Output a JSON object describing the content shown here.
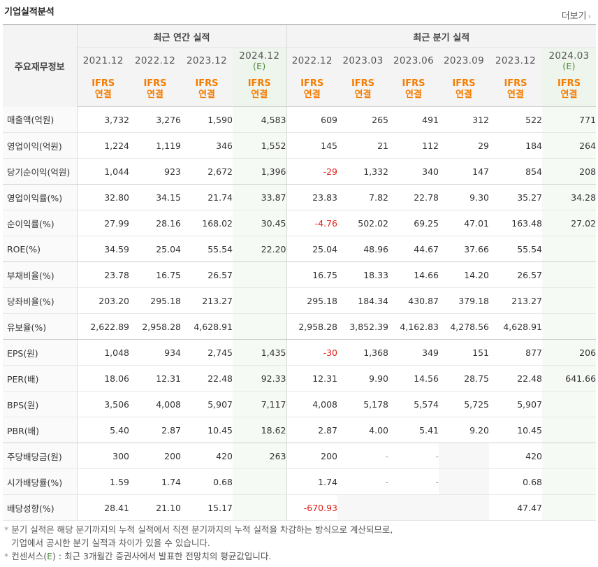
{
  "title": "기업실적분석",
  "more_label": "더보기",
  "more_chevron": "›",
  "header": {
    "label_head": "주요재무정보",
    "annual_group": "최근 연간 실적",
    "quarter_group": "최근 분기 실적",
    "periods": [
      {
        "year": "2021.12",
        "est": "",
        "basis1": "IFRS",
        "basis2": "연결"
      },
      {
        "year": "2022.12",
        "est": "",
        "basis1": "IFRS",
        "basis2": "연결"
      },
      {
        "year": "2023.12",
        "est": "",
        "basis1": "IFRS",
        "basis2": "연결"
      },
      {
        "year": "2024.12",
        "est": "(E)",
        "basis1": "IFRS",
        "basis2": "연결"
      },
      {
        "year": "2022.12",
        "est": "",
        "basis1": "IFRS",
        "basis2": "연결"
      },
      {
        "year": "2023.03",
        "est": "",
        "basis1": "IFRS",
        "basis2": "연결"
      },
      {
        "year": "2023.06",
        "est": "",
        "basis1": "IFRS",
        "basis2": "연결"
      },
      {
        "year": "2023.09",
        "est": "",
        "basis1": "IFRS",
        "basis2": "연결"
      },
      {
        "year": "2023.12",
        "est": "",
        "basis1": "IFRS",
        "basis2": "연결"
      },
      {
        "year": "2024.03",
        "est": "(E)",
        "basis1": "IFRS",
        "basis2": "연결"
      }
    ]
  },
  "rows": [
    {
      "label": "매출액(억원)",
      "values": [
        "3,732",
        "3,276",
        "1,590",
        "4,583",
        "609",
        "265",
        "491",
        "312",
        "522",
        "771"
      ]
    },
    {
      "label": "영업이익(억원)",
      "values": [
        "1,224",
        "1,119",
        "346",
        "1,552",
        "145",
        "21",
        "112",
        "29",
        "184",
        "264"
      ]
    },
    {
      "label": "당기순이익(억원)",
      "values": [
        "1,044",
        "923",
        "2,672",
        "1,396",
        "-29",
        "1,332",
        "340",
        "147",
        "854",
        "208"
      ]
    },
    {
      "label": "영업이익률(%)",
      "values": [
        "32.80",
        "34.15",
        "21.74",
        "33.87",
        "23.83",
        "7.82",
        "22.78",
        "9.30",
        "35.27",
        "34.28"
      ]
    },
    {
      "label": "순이익률(%)",
      "values": [
        "27.99",
        "28.16",
        "168.02",
        "30.45",
        "-4.76",
        "502.02",
        "69.25",
        "47.01",
        "163.48",
        "27.02"
      ]
    },
    {
      "label": "ROE(%)",
      "values": [
        "34.59",
        "25.04",
        "55.54",
        "22.20",
        "25.04",
        "48.96",
        "44.67",
        "37.66",
        "55.54",
        ""
      ]
    },
    {
      "label": "부채비율(%)",
      "values": [
        "23.78",
        "16.75",
        "26.57",
        "",
        "16.75",
        "18.33",
        "14.66",
        "14.20",
        "26.57",
        ""
      ]
    },
    {
      "label": "당좌비율(%)",
      "values": [
        "203.20",
        "295.18",
        "213.27",
        "",
        "295.18",
        "184.34",
        "430.87",
        "379.18",
        "213.27",
        ""
      ]
    },
    {
      "label": "유보율(%)",
      "values": [
        "2,622.89",
        "2,958.28",
        "4,628.91",
        "",
        "2,958.28",
        "3,852.39",
        "4,162.83",
        "4,278.56",
        "4,628.91",
        ""
      ]
    },
    {
      "label": "EPS(원)",
      "values": [
        "1,048",
        "934",
        "2,745",
        "1,435",
        "-30",
        "1,368",
        "349",
        "151",
        "877",
        "206"
      ]
    },
    {
      "label": "PER(배)",
      "values": [
        "18.06",
        "12.31",
        "22.48",
        "92.33",
        "12.31",
        "9.90",
        "14.56",
        "28.75",
        "22.48",
        "641.66"
      ]
    },
    {
      "label": "BPS(원)",
      "values": [
        "3,506",
        "4,008",
        "5,907",
        "7,117",
        "4,008",
        "5,178",
        "5,574",
        "5,725",
        "5,907",
        ""
      ]
    },
    {
      "label": "PBR(배)",
      "values": [
        "5.40",
        "2.87",
        "10.45",
        "18.62",
        "2.87",
        "4.00",
        "5.41",
        "9.20",
        "10.45",
        ""
      ]
    },
    {
      "label": "주당배당금(원)",
      "values": [
        "300",
        "200",
        "420",
        "263",
        "200",
        "-",
        "-",
        "",
        "420",
        ""
      ]
    },
    {
      "label": "시가배당률(%)",
      "values": [
        "1.59",
        "1.74",
        "0.68",
        "",
        "1.74",
        "-",
        "-",
        "",
        "0.68",
        ""
      ]
    },
    {
      "label": "배당성향(%)",
      "values": [
        "28.41",
        "21.10",
        "15.17",
        "",
        "-670.93",
        "",
        "",
        "",
        "47.47",
        ""
      ]
    }
  ],
  "notes": {
    "line1": "분기 실적은 해당 분기까지의 누적 실적에서 직전 분기까지의 누적 실적을 차감하는 방식으로 계산되므로,",
    "line2": "기업에서 공시한 분기 실적과 차이가 있을 수 있습니다.",
    "line3_pre": "컨센서스(",
    "line3_e": "E",
    "line3_post": ") : 최근 3개월간 증권사에서 발표한 전망치의 평균값입니다.",
    "bullet": "*"
  }
}
